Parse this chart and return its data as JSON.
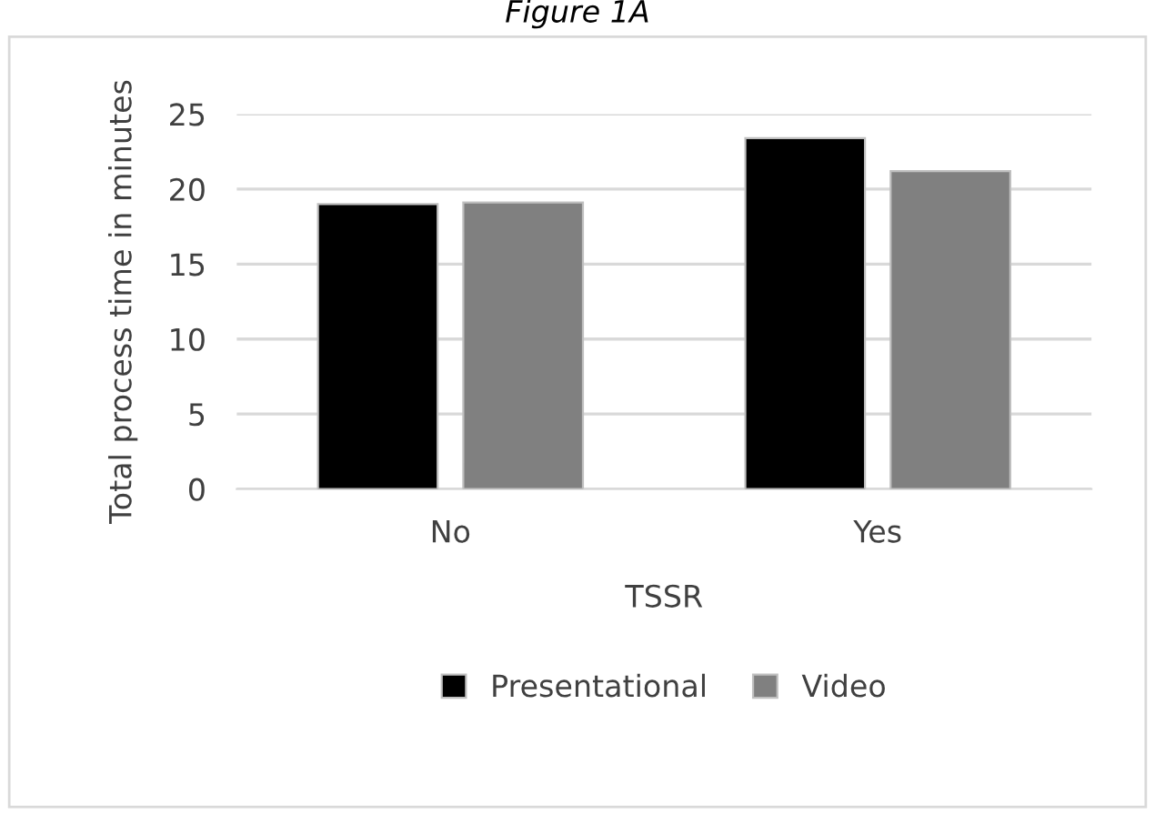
{
  "chart_data": {
    "type": "bar",
    "title": "Figure 1A",
    "xlabel": "TSSR",
    "ylabel": "Total process time in minutes",
    "categories": [
      "No",
      "Yes"
    ],
    "series": [
      {
        "name": "Presentational",
        "color": "#000000",
        "values": [
          19.0,
          23.4
        ]
      },
      {
        "name": "Video",
        "color": "#808080",
        "values": [
          19.1,
          21.2
        ]
      }
    ],
    "ylim": [
      0,
      25
    ],
    "yticks": [
      0,
      5,
      10,
      15,
      20,
      25
    ],
    "grid": "y",
    "legend": "bottom"
  }
}
